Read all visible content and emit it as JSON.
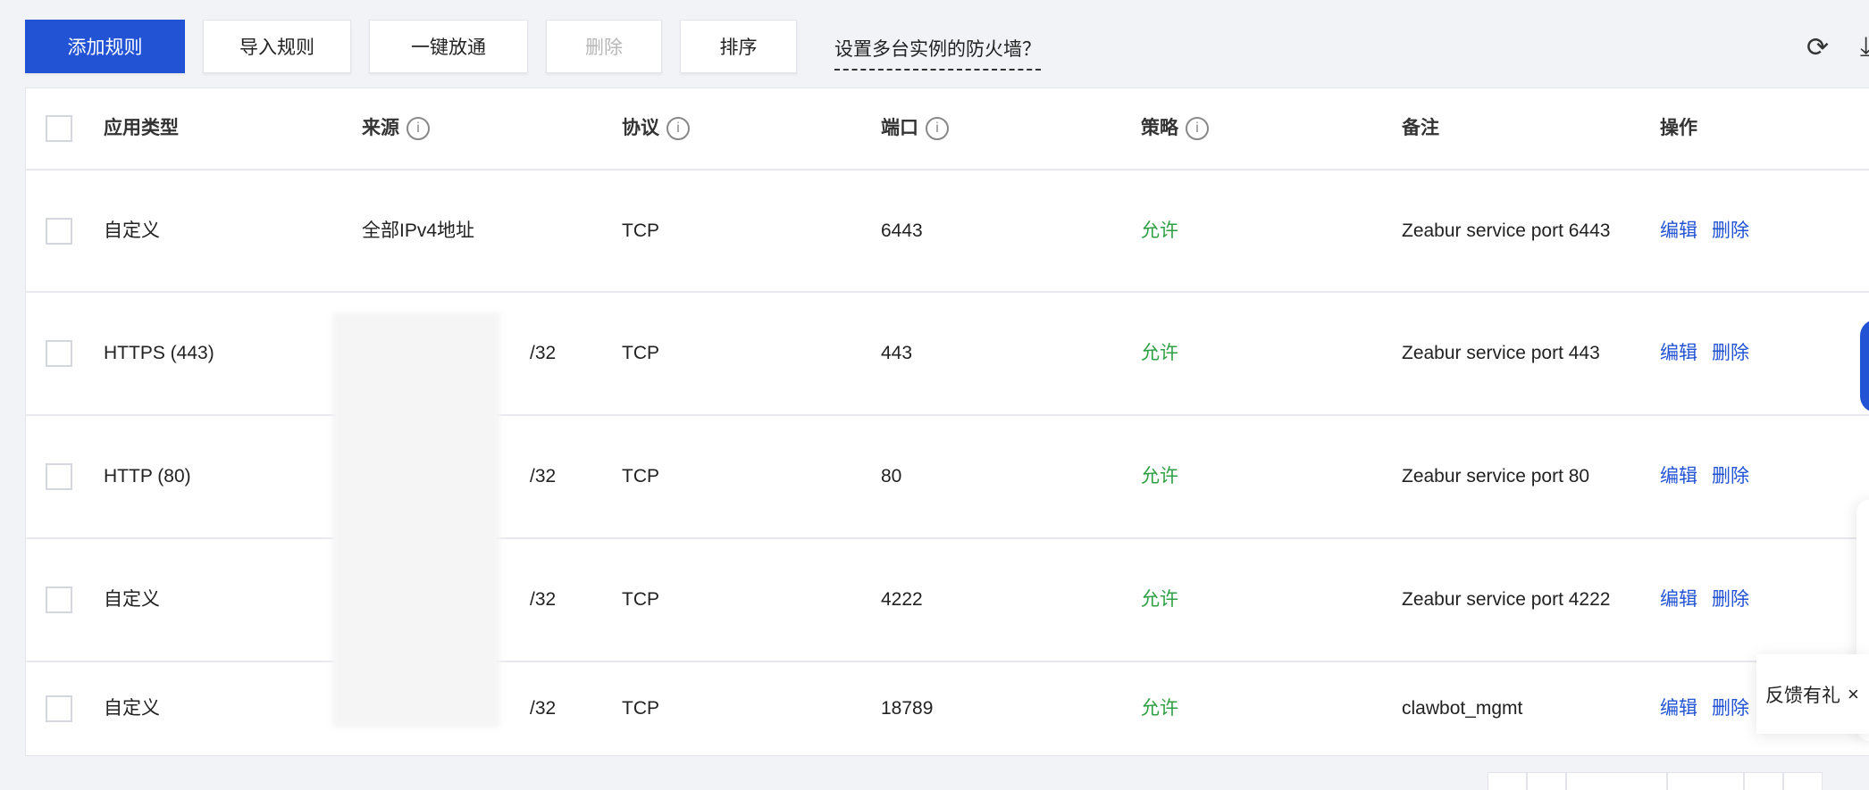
{
  "toolbar": {
    "add_rule": "添加规则",
    "import_rules": "导入规则",
    "open_all": "一键放通",
    "delete": "删除",
    "sort": "排序",
    "help_link": "设置多台实例的防火墙？",
    "refresh_icon": "refresh-icon",
    "download_icon": "download-icon"
  },
  "table": {
    "headers": {
      "type": "应用类型",
      "source": "来源",
      "protocol": "协议",
      "port": "端口",
      "policy": "策略",
      "note": "备注",
      "action": "操作"
    },
    "rows": [
      {
        "type": "自定义",
        "source": "全部IPv4地址",
        "protocol": "TCP",
        "port": "6443",
        "policy": "允许",
        "note": "Zeabur service port 6443",
        "edit": "编辑",
        "delete": "删除"
      },
      {
        "type": "HTTPS (443)",
        "source": "/32",
        "protocol": "TCP",
        "port": "443",
        "policy": "允许",
        "note": "Zeabur service port 443",
        "edit": "编辑",
        "delete": "删除"
      },
      {
        "type": "HTTP (80)",
        "source": "/32",
        "protocol": "TCP",
        "port": "80",
        "policy": "允许",
        "note": "Zeabur service port 80",
        "edit": "编辑",
        "delete": "删除"
      },
      {
        "type": "自定义",
        "source": "/32",
        "protocol": "TCP",
        "port": "4222",
        "policy": "允许",
        "note": "Zeabur service port 4222",
        "edit": "编辑",
        "delete": "删除"
      },
      {
        "type": "自定义",
        "source": "/32",
        "protocol": "TCP",
        "port": "18789",
        "policy": "允许",
        "note": "clawbot_mgmt",
        "edit": "编辑",
        "delete": "删除"
      }
    ]
  },
  "feedback": {
    "label": "反馈有礼",
    "close": "×"
  },
  "colors": {
    "primary": "#2153d4",
    "allow": "#2ea043"
  }
}
